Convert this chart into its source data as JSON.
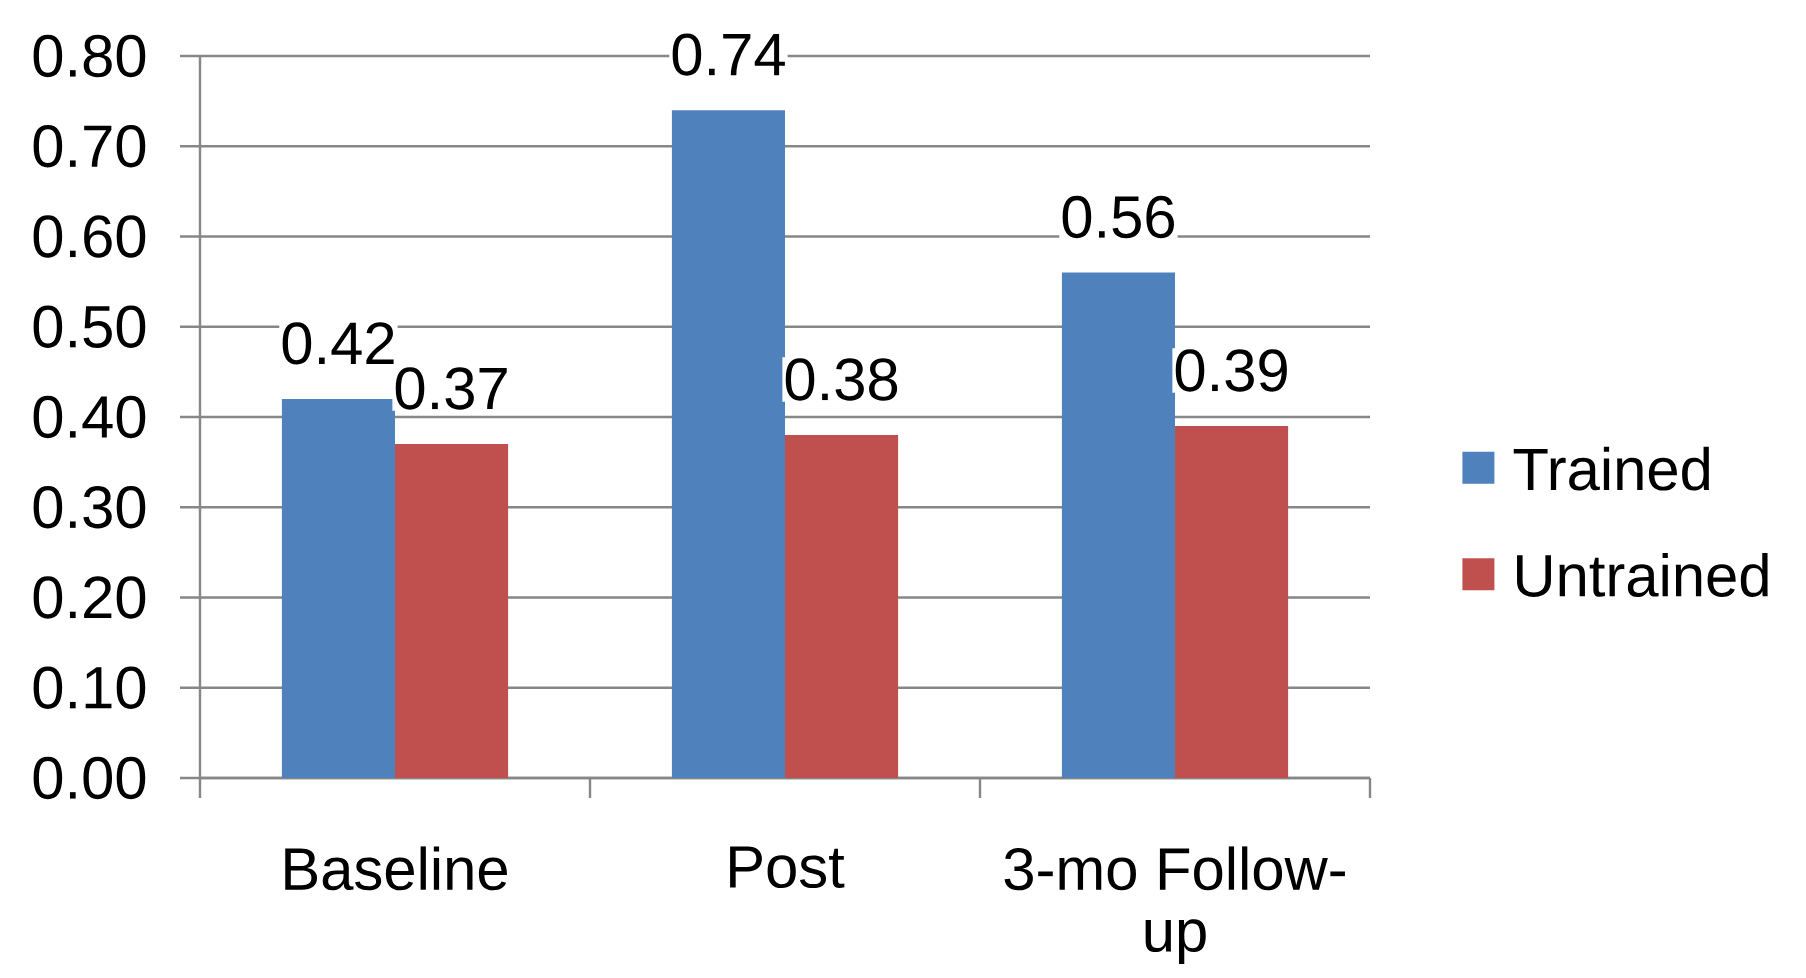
{
  "chart_data": {
    "type": "bar",
    "categories": [
      "Baseline",
      "Post",
      "3-mo Follow-up"
    ],
    "series": [
      {
        "name": "Trained",
        "color": "#4f81bd",
        "values": [
          0.42,
          0.74,
          0.56
        ]
      },
      {
        "name": "Untrained",
        "color": "#c0504d",
        "values": [
          0.37,
          0.38,
          0.39
        ]
      }
    ],
    "ylim": [
      0,
      0.8
    ],
    "yticks": [
      {
        "value": 0,
        "label": "0.00"
      },
      {
        "value": 0.1,
        "label": "0.10"
      },
      {
        "value": 0.2,
        "label": "0.20"
      },
      {
        "value": 0.3,
        "label": "0.30"
      },
      {
        "value": 0.4,
        "label": "0.40"
      },
      {
        "value": 0.5,
        "label": "0.50"
      },
      {
        "value": 0.6,
        "label": "0.60"
      },
      {
        "value": 0.7,
        "label": "0.70"
      },
      {
        "value": 0.8,
        "label": "0.80"
      }
    ],
    "grid": "y",
    "legend": "right",
    "data_labels": true
  }
}
